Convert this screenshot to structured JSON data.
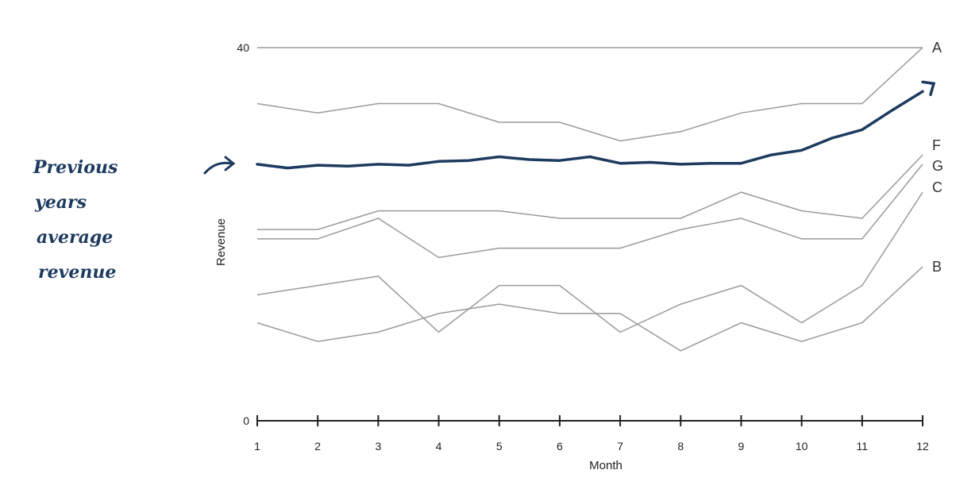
{
  "chart_data": {
    "type": "line",
    "xlabel": "Month",
    "ylabel": "Revenue",
    "x": [
      1,
      2,
      3,
      4,
      5,
      6,
      7,
      8,
      9,
      10,
      11,
      12
    ],
    "xlim": [
      1,
      12
    ],
    "ylim": [
      0,
      40
    ],
    "y_ticks": [
      0,
      40
    ],
    "grid": false,
    "series": [
      {
        "name": "A",
        "values": [
          40,
          40,
          40,
          40,
          40,
          40,
          40,
          40,
          40,
          40,
          40,
          40
        ],
        "color": "#9a9a9a"
      },
      {
        "name": "",
        "values": [
          34,
          33,
          34,
          34,
          32,
          32,
          30,
          31,
          33,
          34,
          34,
          40
        ],
        "color": "#9a9a9a"
      },
      {
        "name": "F",
        "values": [
          20.5,
          20.5,
          22.5,
          22.5,
          22.5,
          21.7,
          21.7,
          21.7,
          24.5,
          22.5,
          21.7,
          28.5
        ],
        "color": "#9a9a9a"
      },
      {
        "name": "G",
        "values": [
          19.5,
          19.5,
          21.7,
          17.5,
          18.5,
          18.5,
          18.5,
          20.5,
          21.7,
          19.5,
          19.5,
          27.5
        ],
        "color": "#9a9a9a"
      },
      {
        "name": "C",
        "values": [
          13.5,
          14.5,
          15.5,
          9.5,
          14.5,
          14.5,
          9.5,
          12.5,
          14.5,
          10.5,
          14.5,
          24.5
        ],
        "color": "#9a9a9a"
      },
      {
        "name": "B",
        "values": [
          10.5,
          8.5,
          9.5,
          11.5,
          12.5,
          11.5,
          11.5,
          7.5,
          10.5,
          8.5,
          10.5,
          16.5
        ],
        "color": "#9a9a9a"
      }
    ],
    "annotation": {
      "text": [
        "Previous",
        "years",
        "average",
        "revenue"
      ],
      "color": "#1d3a5f",
      "path_values": [
        [
          1,
          27.5
        ],
        [
          1.5,
          27.1
        ],
        [
          2,
          27.4
        ],
        [
          2.5,
          27.3
        ],
        [
          3,
          27.5
        ],
        [
          3.5,
          27.4
        ],
        [
          4,
          27.8
        ],
        [
          4.5,
          27.9
        ],
        [
          5,
          28.3
        ],
        [
          5.5,
          28.0
        ],
        [
          6,
          27.9
        ],
        [
          6.5,
          28.3
        ],
        [
          7,
          27.6
        ],
        [
          7.5,
          27.7
        ],
        [
          8,
          27.5
        ],
        [
          8.5,
          27.6
        ],
        [
          9,
          27.6
        ],
        [
          9.5,
          28.5
        ],
        [
          10,
          29.0
        ],
        [
          10.5,
          30.3
        ],
        [
          11,
          31.2
        ],
        [
          11.5,
          33.3
        ],
        [
          12,
          35.3
        ]
      ]
    }
  }
}
